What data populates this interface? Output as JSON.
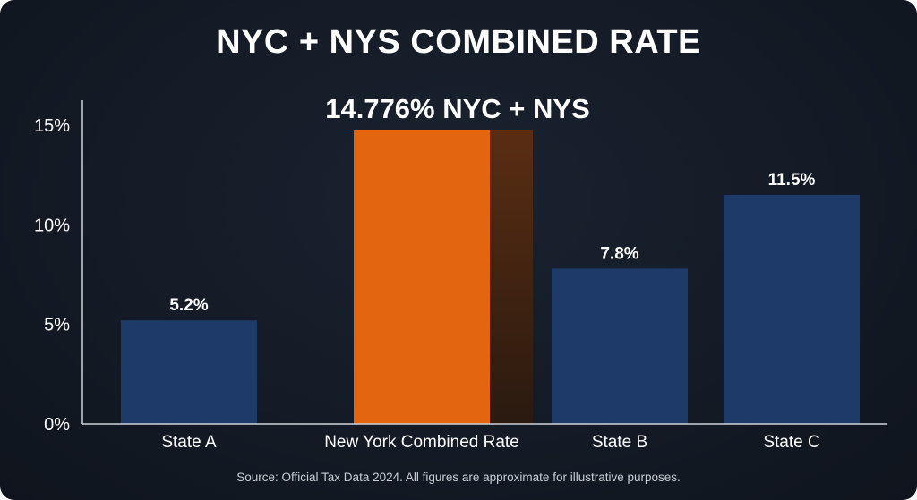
{
  "title": "NYC + NYS COMBINED RATE",
  "source_note": "Source: Official Tax Data 2024. All figures are approximate for illustrative purposes.",
  "colors": {
    "background": "#141b26",
    "bar": "#1d3a69",
    "highlight_bar": "#e4650f",
    "highlight_shadow": "#4a2712",
    "axis": "#d0d4da",
    "text": "#ffffff"
  },
  "chart_data": {
    "type": "bar",
    "title": "NYC + NYS COMBINED RATE",
    "categories": [
      "State A",
      "New York Combined Rate",
      "State B",
      "State C"
    ],
    "values": [
      5.2,
      14.776,
      7.8,
      11.5
    ],
    "data_labels": [
      "5.2%",
      "14.776% NYC + NYS",
      "7.8%",
      "11.5%"
    ],
    "highlight_index": 1,
    "ylim": [
      0,
      15
    ],
    "yticks": [
      0,
      5,
      10,
      15
    ],
    "ytick_labels": [
      "0%",
      "5%",
      "10%",
      "15%"
    ],
    "xlabel": "",
    "ylabel": "",
    "grid": false,
    "legend": "none"
  }
}
